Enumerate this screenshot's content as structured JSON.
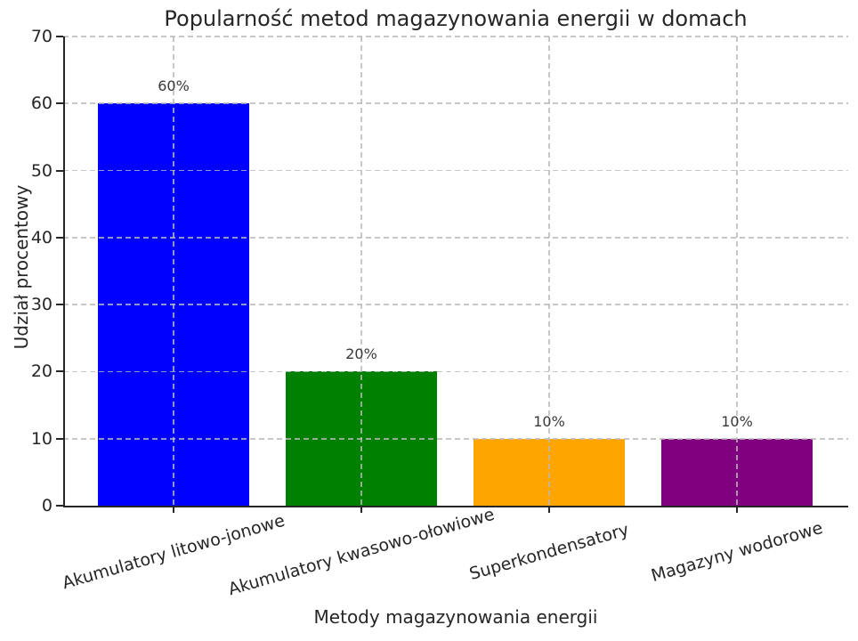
{
  "chart_data": {
    "type": "bar",
    "title": "Popularność metod magazynowania energii w domach",
    "xlabel": "Metody magazynowania energii",
    "ylabel": "Udział procentowy",
    "categories": [
      "Akumulatory litowo-jonowe",
      "Akumulatory kwasowo-ołowiowe",
      "Superkondensatory",
      "Magazyny wodorowe"
    ],
    "values": [
      60,
      20,
      10,
      10
    ],
    "bar_labels": [
      "60%",
      "20%",
      "10%",
      "10%"
    ],
    "bar_colors": [
      "#0000ff",
      "#008000",
      "#ffa500",
      "#800080"
    ],
    "yticks": [
      0,
      10,
      20,
      30,
      40,
      50,
      60,
      70
    ],
    "ylim": [
      0,
      70
    ],
    "grid": {
      "style": "dashed",
      "color": "#c9c9c9",
      "drawn_above_bars": true
    },
    "legend": "none",
    "text_color": "#262626",
    "background": "#ffffff"
  }
}
